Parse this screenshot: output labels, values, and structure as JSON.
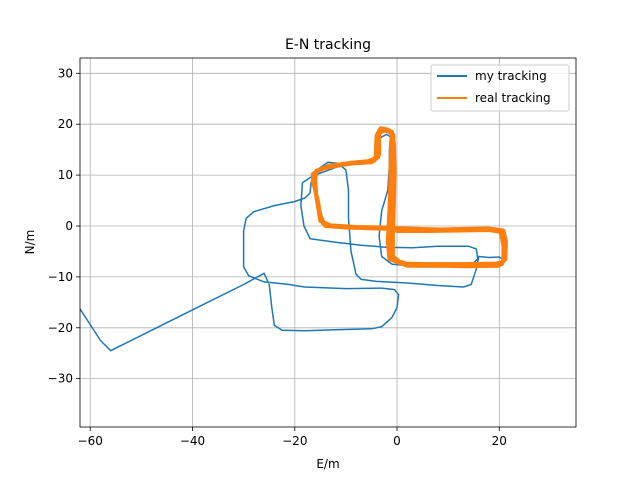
{
  "chart_data": {
    "type": "line",
    "title": "E-N tracking",
    "xlabel": "E/m",
    "ylabel": "N/m",
    "xlim": [
      -62,
      35
    ],
    "ylim": [
      -39.5,
      33
    ],
    "xticks": [
      -60,
      -40,
      -20,
      0,
      20
    ],
    "yticks": [
      -30,
      -20,
      -10,
      0,
      10,
      20,
      30
    ],
    "xtick_labels": [
      "−60",
      "−40",
      "−20",
      "0",
      "20"
    ],
    "ytick_labels": [
      "−30",
      "−20",
      "−10",
      "0",
      "10",
      "20",
      "30"
    ],
    "grid": true,
    "legend_position": "top-right",
    "series": [
      {
        "name": "my tracking",
        "color": "#1f77b4",
        "points": [
          [
            -62,
            -16.3
          ],
          [
            -58,
            -22.5
          ],
          [
            -56,
            -24.5
          ],
          [
            -54,
            -23.5
          ],
          [
            -46,
            -19.5
          ],
          [
            -38,
            -15.5
          ],
          [
            -30,
            -11.5
          ],
          [
            -26,
            -9.3
          ],
          [
            -25,
            -11.5
          ],
          [
            -24.5,
            -16
          ],
          [
            -24,
            -19.5
          ],
          [
            -22.5,
            -20.5
          ],
          [
            -18,
            -20.6
          ],
          [
            -12,
            -20.4
          ],
          [
            -5,
            -20.2
          ],
          [
            -3,
            -19.8
          ],
          [
            -1,
            -18
          ],
          [
            0,
            -16
          ],
          [
            0.3,
            -13.5
          ],
          [
            -0.5,
            -12.5
          ],
          [
            -3,
            -12.2
          ],
          [
            -10,
            -12.3
          ],
          [
            -18,
            -12
          ],
          [
            -20,
            -11.7
          ],
          [
            -21,
            -11.5
          ],
          [
            -26,
            -11
          ],
          [
            -29,
            -9.8
          ],
          [
            -30,
            -8
          ],
          [
            -30,
            -1
          ],
          [
            -29.5,
            1.5
          ],
          [
            -28,
            2.8
          ],
          [
            -24,
            4
          ],
          [
            -20,
            4.8
          ],
          [
            -18,
            5.5
          ],
          [
            -17,
            6.5
          ],
          [
            -16.8,
            8.5
          ],
          [
            -16,
            10.8
          ],
          [
            -13.5,
            12.5
          ],
          [
            -11.5,
            12.3
          ],
          [
            -10,
            11
          ],
          [
            -9.5,
            7
          ],
          [
            -9.5,
            1.5
          ],
          [
            -9,
            -5
          ],
          [
            -8,
            -9.5
          ],
          [
            -7,
            -10.5
          ],
          [
            -4,
            -10.9
          ],
          [
            2,
            -11.2
          ],
          [
            8,
            -11.7
          ],
          [
            13,
            -12
          ],
          [
            14.5,
            -11.5
          ],
          [
            15.5,
            -8.5
          ],
          [
            16,
            -6
          ],
          [
            18,
            -6.2
          ],
          [
            20,
            -6.1
          ],
          [
            20.6,
            -6.5
          ],
          [
            20.5,
            -7.2
          ],
          [
            19,
            -7.5
          ],
          [
            14,
            -7.6
          ],
          [
            8,
            -7.8
          ],
          [
            2,
            -7.8
          ],
          [
            -1,
            -7.5
          ],
          [
            -3,
            -6
          ],
          [
            -3.5,
            -2
          ],
          [
            -3,
            3
          ],
          [
            -1.8,
            7
          ],
          [
            -1.5,
            12
          ],
          [
            -1.5,
            15
          ],
          [
            -1.3,
            17.5
          ],
          [
            -2,
            18
          ],
          [
            -3,
            17.5
          ],
          [
            -4,
            16.5
          ],
          [
            -4.5,
            13
          ],
          [
            -5.5,
            12.5
          ],
          [
            -8,
            12.3
          ],
          [
            -12,
            11.5
          ],
          [
            -16,
            10
          ],
          [
            -17,
            9.5
          ],
          [
            -18.5,
            8.5
          ],
          [
            -18.8,
            4
          ],
          [
            -18.2,
            0
          ],
          [
            -17,
            -2.5
          ],
          [
            -12,
            -3.2
          ],
          [
            -7,
            -3.8
          ],
          [
            -2,
            -4.2
          ],
          [
            3,
            -4.3
          ],
          [
            8,
            -4
          ],
          [
            14,
            -4
          ],
          [
            15.5,
            -4.5
          ],
          [
            15.8,
            -6.5
          ],
          [
            15,
            -7.2
          ]
        ]
      },
      {
        "name": "real tracking",
        "color": "#ff7f0e",
        "points": [
          [
            0,
            -1
          ],
          [
            6,
            -1
          ],
          [
            12,
            -0.9
          ],
          [
            18,
            -0.8
          ],
          [
            20.5,
            -1.2
          ],
          [
            21,
            -3
          ],
          [
            21,
            -6
          ],
          [
            20.5,
            -7.5
          ],
          [
            15,
            -7.6
          ],
          [
            8,
            -7.6
          ],
          [
            2,
            -7.5
          ],
          [
            -1,
            -6.5
          ],
          [
            -1.2,
            -3
          ],
          [
            -1,
            2
          ],
          [
            -0.8,
            8
          ],
          [
            -0.8,
            14
          ],
          [
            -0.7,
            17.8
          ],
          [
            -1.5,
            18.8
          ],
          [
            -3,
            18.9
          ],
          [
            -3.8,
            18
          ],
          [
            -3.7,
            13.5
          ],
          [
            -5,
            12.5
          ],
          [
            -10,
            12.2
          ],
          [
            -14,
            11.5
          ],
          [
            -16,
            10.5
          ],
          [
            -16.5,
            9
          ],
          [
            -15.5,
            5
          ],
          [
            -15,
            2
          ],
          [
            -14,
            0
          ],
          [
            -10,
            -0.3
          ],
          [
            -4,
            -0.5
          ],
          [
            0,
            -0.6
          ],
          [
            6,
            -0.8
          ],
          [
            12,
            -0.6
          ],
          [
            18,
            -0.5
          ],
          [
            20.8,
            -0.9
          ],
          [
            21.3,
            -3
          ],
          [
            21.2,
            -6.5
          ],
          [
            20,
            -7.8
          ],
          [
            14,
            -7.9
          ],
          [
            8,
            -7.8
          ],
          [
            2,
            -7.8
          ],
          [
            -1.5,
            -6.5
          ],
          [
            -1.8,
            -3
          ],
          [
            -1.5,
            3
          ],
          [
            -1.3,
            9
          ],
          [
            -1.2,
            15
          ],
          [
            -1,
            18
          ],
          [
            -2,
            19
          ],
          [
            -3.2,
            19.2
          ],
          [
            -4,
            17.8
          ],
          [
            -4.2,
            13.3
          ],
          [
            -6,
            12.6
          ],
          [
            -11,
            12
          ],
          [
            -15,
            11.2
          ],
          [
            -16.5,
            10.2
          ],
          [
            -16.2,
            8
          ],
          [
            -15.2,
            3
          ],
          [
            -14.5,
            0.5
          ],
          [
            -12,
            -0.1
          ],
          [
            -6,
            -0.3
          ],
          [
            -1,
            -0.4
          ],
          [
            5,
            -0.6
          ],
          [
            12,
            -0.8
          ],
          [
            19,
            -0.7
          ],
          [
            20.3,
            -1
          ],
          [
            20.8,
            -4
          ],
          [
            20.8,
            -7
          ],
          [
            19.5,
            -7.4
          ],
          [
            13,
            -7.5
          ],
          [
            6,
            -7.5
          ],
          [
            1,
            -7.4
          ],
          [
            -0.8,
            -6
          ],
          [
            -0.8,
            -1.5
          ],
          [
            -0.6,
            5
          ],
          [
            -0.5,
            11
          ],
          [
            -0.6,
            16
          ],
          [
            -1,
            18.5
          ],
          [
            -2.5,
            18.7
          ],
          [
            -3.5,
            18.3
          ],
          [
            -3.5,
            14
          ],
          [
            -4.5,
            12.8
          ],
          [
            -9,
            12.4
          ],
          [
            -13.5,
            11.8
          ],
          [
            -15.8,
            10.8
          ],
          [
            -16,
            9.2
          ],
          [
            -15.8,
            6
          ],
          [
            -15.5,
            4
          ],
          [
            -15,
            1
          ],
          [
            -13,
            0.1
          ],
          [
            -8,
            -0.2
          ],
          [
            -2,
            -0.3
          ],
          [
            0,
            -0.5
          ]
        ]
      }
    ]
  }
}
